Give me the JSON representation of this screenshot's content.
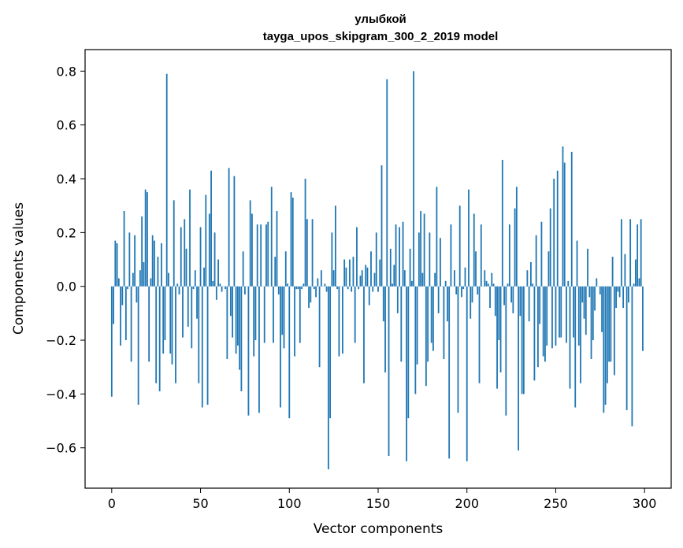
{
  "chart_data": {
    "type": "bar",
    "title": "улыбкой",
    "subtitle": "tayga_upos_skipgram_300_2_2019 model",
    "xlabel": "Vector components",
    "ylabel": "Components values",
    "xlim": [
      -15,
      315
    ],
    "ylim": [
      -0.75,
      0.88
    ],
    "xticks": [
      0,
      50,
      100,
      150,
      200,
      250,
      300
    ],
    "yticks": [
      -0.6,
      -0.4,
      -0.2,
      0.0,
      0.2,
      0.4,
      0.6,
      0.8
    ],
    "ytick_labels": [
      "−0.6",
      "−0.4",
      "−0.2",
      "0.0",
      "0.2",
      "0.4",
      "0.6",
      "0.8"
    ],
    "grid": false,
    "bar_color": "#1f77b4",
    "x": "component index 0-299",
    "values": [
      -0.41,
      -0.14,
      0.17,
      0.16,
      0.03,
      -0.22,
      -0.07,
      0.28,
      -0.2,
      -0.01,
      0.2,
      -0.28,
      0.05,
      0.19,
      -0.06,
      -0.44,
      0.06,
      0.26,
      0.09,
      0.36,
      0.35,
      -0.28,
      0.03,
      0.19,
      0.17,
      -0.36,
      0.11,
      -0.39,
      0.16,
      -0.25,
      -0.2,
      0.79,
      0.05,
      -0.25,
      -0.29,
      0.32,
      -0.36,
      0.01,
      -0.03,
      0.22,
      -0.19,
      0.25,
      0.14,
      -0.15,
      0.36,
      -0.23,
      -0.01,
      0.06,
      -0.12,
      -0.36,
      0.22,
      -0.45,
      0.07,
      0.34,
      -0.44,
      0.27,
      0.43,
      0.02,
      0.2,
      -0.05,
      0.1,
      0.01,
      -0.02,
      0.0,
      -0.01,
      -0.27,
      0.44,
      -0.11,
      -0.19,
      0.41,
      -0.25,
      -0.22,
      -0.31,
      -0.39,
      0.13,
      -0.03,
      0.0,
      -0.48,
      0.32,
      0.27,
      -0.26,
      -0.2,
      0.23,
      -0.47,
      0.23,
      0.0,
      -0.21,
      0.23,
      0.24,
      0.0,
      0.37,
      -0.21,
      0.11,
      0.28,
      -0.03,
      -0.45,
      -0.18,
      -0.23,
      0.13,
      0.01,
      -0.49,
      0.35,
      0.33,
      -0.26,
      -0.01,
      -0.01,
      -0.21,
      -0.01,
      0.01,
      0.4,
      0.25,
      -0.08,
      -0.06,
      0.25,
      -0.01,
      -0.04,
      0.03,
      -0.3,
      0.06,
      0.0,
      0.01,
      -0.02,
      -0.68,
      -0.49,
      0.2,
      0.06,
      0.3,
      -0.01,
      -0.26,
      0.0,
      -0.25,
      0.1,
      0.07,
      -0.01,
      0.1,
      -0.02,
      0.11,
      -0.21,
      0.22,
      -0.01,
      0.04,
      0.06,
      -0.36,
      0.08,
      0.07,
      -0.07,
      0.13,
      -0.02,
      0.05,
      0.2,
      -0.02,
      0.1,
      0.45,
      -0.13,
      -0.32,
      0.77,
      -0.63,
      0.14,
      0.01,
      0.08,
      0.23,
      -0.1,
      0.22,
      -0.28,
      0.24,
      0.06,
      -0.65,
      -0.49,
      0.14,
      0.02,
      0.8,
      -0.4,
      -0.29,
      0.2,
      0.28,
      0.05,
      0.27,
      -0.37,
      -0.28,
      0.2,
      -0.21,
      -0.24,
      0.05,
      0.37,
      -0.1,
      0.18,
      0.0,
      -0.27,
      0.02,
      -0.13,
      -0.64,
      0.23,
      0.0,
      0.06,
      -0.03,
      -0.47,
      0.3,
      -0.04,
      -0.01,
      0.07,
      -0.65,
      0.36,
      -0.12,
      -0.06,
      0.27,
      0.13,
      -0.03,
      -0.36,
      0.23,
      0.0,
      0.06,
      0.02,
      0.01,
      -0.08,
      0.05,
      0.01,
      -0.11,
      -0.38,
      -0.2,
      -0.32,
      0.47,
      -0.07,
      -0.48,
      0.01,
      0.23,
      -0.06,
      -0.1,
      0.29,
      0.37,
      -0.61,
      -0.11,
      -0.4,
      -0.4,
      0.0,
      0.06,
      -0.13,
      0.09,
      0.01,
      -0.35,
      0.19,
      -0.3,
      -0.14,
      0.24,
      -0.26,
      -0.28,
      -0.22,
      0.13,
      0.29,
      -0.23,
      0.4,
      -0.22,
      0.43,
      -0.19,
      -0.19,
      0.52,
      0.46,
      -0.21,
      0.02,
      -0.38,
      0.5,
      -0.19,
      -0.45,
      0.17,
      -0.22,
      -0.36,
      -0.06,
      -0.12,
      -0.18,
      0.14,
      -0.04,
      -0.27,
      -0.2,
      -0.09,
      0.03,
      0.0,
      -0.03,
      -0.17,
      -0.47,
      -0.44,
      -0.36,
      -0.28,
      -0.28,
      0.11,
      -0.33,
      -0.08,
      -0.02,
      -0.04,
      0.25,
      -0.08,
      0.12,
      -0.46,
      -0.06,
      0.25,
      -0.52,
      0.01,
      0.1,
      0.23,
      0.03,
      0.25,
      -0.24
    ]
  }
}
